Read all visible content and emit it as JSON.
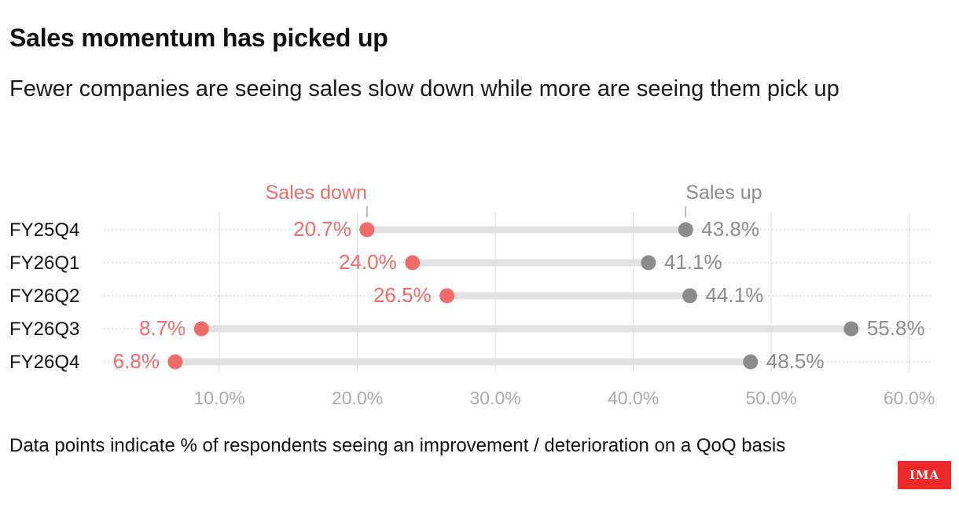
{
  "title": "Sales momentum has picked up",
  "subtitle": "Fewer companies are seeing sales slow down while more are seeing them pick up",
  "footnote": "Data points indicate % of respondents seeing an improvement / deterioration on a QoQ basis",
  "logo_text": "IMA",
  "colors": {
    "down": "#f26b6b",
    "up": "#8c8c8c",
    "connector": "#e2e2e2",
    "grid": "#dddddd",
    "axis_label": "#aaaaaa"
  },
  "chart_data": {
    "type": "dumbbell",
    "title": "Sales momentum has picked up",
    "categories": [
      "FY25Q4",
      "FY26Q1",
      "FY26Q2",
      "FY26Q3",
      "FY26Q4"
    ],
    "series": [
      {
        "name": "Sales down",
        "values": [
          20.7,
          24.0,
          26.5,
          8.7,
          6.8
        ]
      },
      {
        "name": "Sales up",
        "values": [
          43.8,
          41.1,
          44.1,
          55.8,
          48.5
        ]
      }
    ],
    "value_labels": {
      "Sales down": [
        "20.7%",
        "24.0%",
        "26.5%",
        "8.7%",
        "6.8%"
      ],
      "Sales up": [
        "43.8%",
        "41.1%",
        "44.1%",
        "55.8%",
        "48.5%"
      ]
    },
    "xlim": [
      5,
      60
    ],
    "xticks": [
      10,
      20,
      30,
      40,
      50,
      60
    ],
    "xtick_labels": [
      "10.0%",
      "20.0%",
      "30.0%",
      "40.0%",
      "50.0%",
      "60.0%"
    ],
    "xlabel": "",
    "ylabel": "",
    "grid": true,
    "legend": "direct labels above first row"
  }
}
